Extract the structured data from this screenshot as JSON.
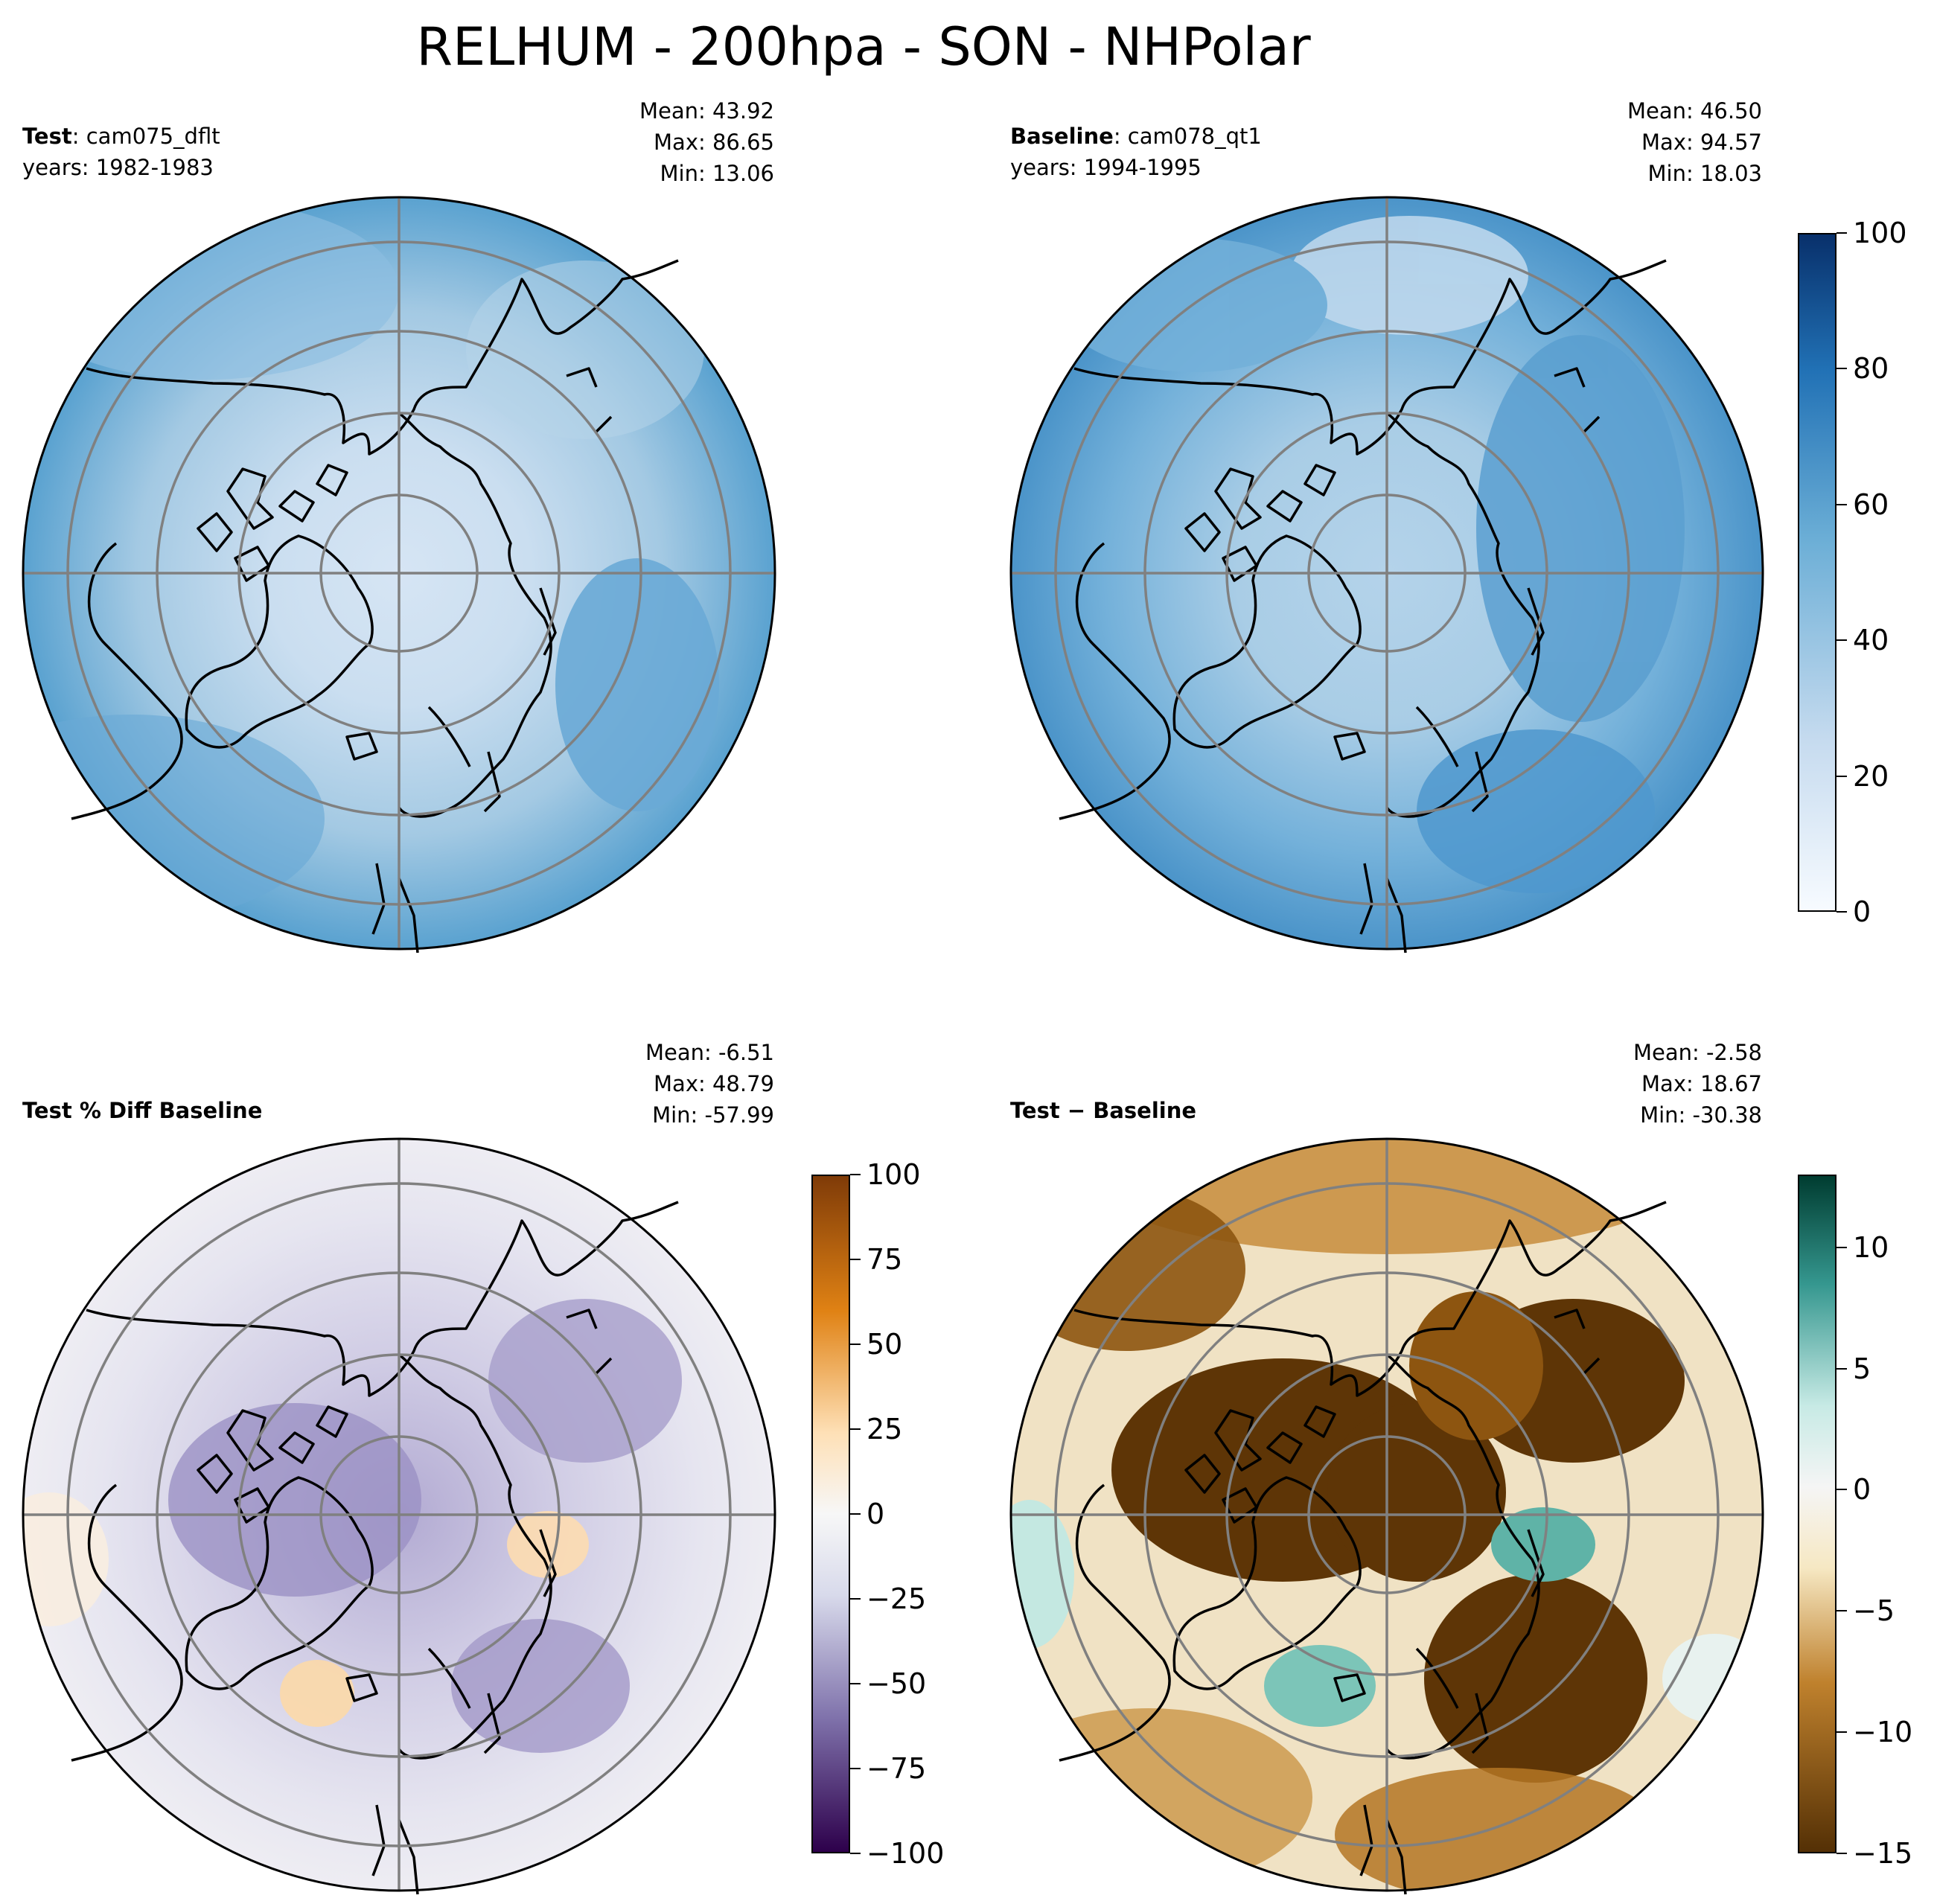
{
  "suptitle": "RELHUM - 200hpa - SON - NHPolar",
  "panels": {
    "test": {
      "label_bold": "Test",
      "label_rest": ": cam075_dflt",
      "years": "years: 1982-1983",
      "mean": "Mean: 43.92",
      "max": "Max: 86.65",
      "min": "Min: 13.06"
    },
    "baseline": {
      "label_bold": "Baseline",
      "label_rest": ": cam078_qt1",
      "years": "years: 1994-1995",
      "mean": "Mean: 46.50",
      "max": "Max: 94.57",
      "min": "Min: 18.03"
    },
    "pctdiff": {
      "label_bold": "Test % Diff Baseline",
      "mean": "Mean: -6.51",
      "max": "Max: 48.79",
      "min": "Min: -57.99"
    },
    "diff": {
      "label_bold": "Test − Baseline",
      "mean": "Mean: -2.58",
      "max": "Max: 18.67",
      "min": "Min: -30.38"
    }
  },
  "colorbars": {
    "fields": {
      "ticks": [
        "0",
        "20",
        "40",
        "60",
        "80",
        "100"
      ],
      "range": [
        0,
        100
      ],
      "colormap": "Blues",
      "colors": [
        "#f7fbff",
        "#c6dbef",
        "#6baed6",
        "#2171b5",
        "#08306b"
      ]
    },
    "pctdiff": {
      "ticks": [
        "−100",
        "−75",
        "−50",
        "−25",
        "0",
        "25",
        "50",
        "75",
        "100"
      ],
      "range": [
        -100,
        100
      ],
      "colormap": "PuOr_r",
      "colors": [
        "#2d004b",
        "#8073ac",
        "#d8daeb",
        "#f7f7f7",
        "#fee0b6",
        "#e08214",
        "#7f3b08"
      ]
    },
    "diff": {
      "ticks": [
        "−15",
        "−10",
        "−5",
        "0",
        "5",
        "10"
      ],
      "range": [
        -15,
        13
      ],
      "colormap": "BrBG",
      "colors": [
        "#543005",
        "#bf812d",
        "#f6e8c3",
        "#f5f5f5",
        "#c7eae5",
        "#35978f",
        "#003c30"
      ]
    }
  }
}
